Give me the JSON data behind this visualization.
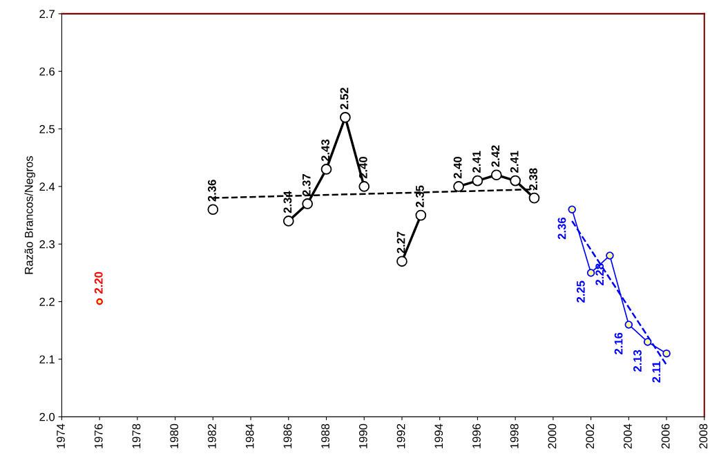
{
  "chart_data": {
    "type": "line",
    "ylabel": "Razão Brancos/Negros",
    "xlim": [
      1974,
      2008
    ],
    "xticks": [
      1974,
      1976,
      1978,
      1980,
      1982,
      1984,
      1986,
      1988,
      1990,
      1992,
      1994,
      1996,
      1998,
      2000,
      2002,
      2004,
      2006,
      2008
    ],
    "ylim": [
      2.0,
      2.7
    ],
    "yticks": [
      {
        "value": 2.0,
        "label": "2.0"
      },
      {
        "value": 2.1,
        "label": "2.1"
      },
      {
        "value": 2.2,
        "label": "2.2"
      },
      {
        "value": 2.3,
        "label": "2.3"
      },
      {
        "value": 2.4,
        "label": "2.4"
      },
      {
        "value": 2.5,
        "label": "2.5"
      },
      {
        "value": 2.6,
        "label": "2.6"
      },
      {
        "value": 2.7,
        "label": "2.7"
      }
    ],
    "grid": false,
    "series": [
      {
        "type": "scatter",
        "color": "#ff0000",
        "marker": "circle",
        "x": [
          1976
        ],
        "values": [
          2.2
        ],
        "value_labels": [
          "2.20"
        ]
      },
      {
        "color": "#000000",
        "marker": "circle",
        "line_style": "solid",
        "x": [
          1982,
          1983,
          1984,
          1985,
          1986,
          1987,
          1988,
          1989,
          1990,
          1991,
          1992,
          1993,
          1994,
          1995,
          1996,
          1997,
          1998,
          1999
        ],
        "values": [
          2.36,
          null,
          null,
          null,
          2.34,
          2.37,
          2.43,
          2.52,
          2.4,
          null,
          2.27,
          2.35,
          null,
          2.4,
          2.41,
          2.42,
          2.41,
          2.38
        ],
        "value_labels": [
          "2.36",
          null,
          null,
          null,
          "2.34",
          "2.37",
          "2.43",
          "2.52",
          "2.40",
          null,
          "2.27",
          "2.35",
          null,
          "2.40",
          "2.41",
          "2.42",
          "2.41",
          "2.38"
        ]
      },
      {
        "type": "line",
        "color": "#000000",
        "marker": "none",
        "line_style": "dashed",
        "x": [
          1982,
          1999
        ],
        "values": [
          2.38,
          2.395
        ],
        "value_labels": [
          null,
          null
        ]
      },
      {
        "color": "#0000ff",
        "marker": "circle",
        "line_style": "solid",
        "x": [
          2001,
          2002,
          2003,
          2004,
          2005,
          2006
        ],
        "values": [
          2.36,
          2.25,
          2.28,
          2.16,
          2.13,
          2.11
        ],
        "value_labels": [
          "2.36",
          "2.25",
          "2.28",
          "2.16",
          "2.13",
          "2.11"
        ]
      },
      {
        "type": "line",
        "color": "#0000ff",
        "marker": "none",
        "line_style": "dashed",
        "x": [
          2001,
          2006
        ],
        "values": [
          2.34,
          2.09
        ],
        "value_labels": [
          null,
          null
        ]
      }
    ]
  }
}
